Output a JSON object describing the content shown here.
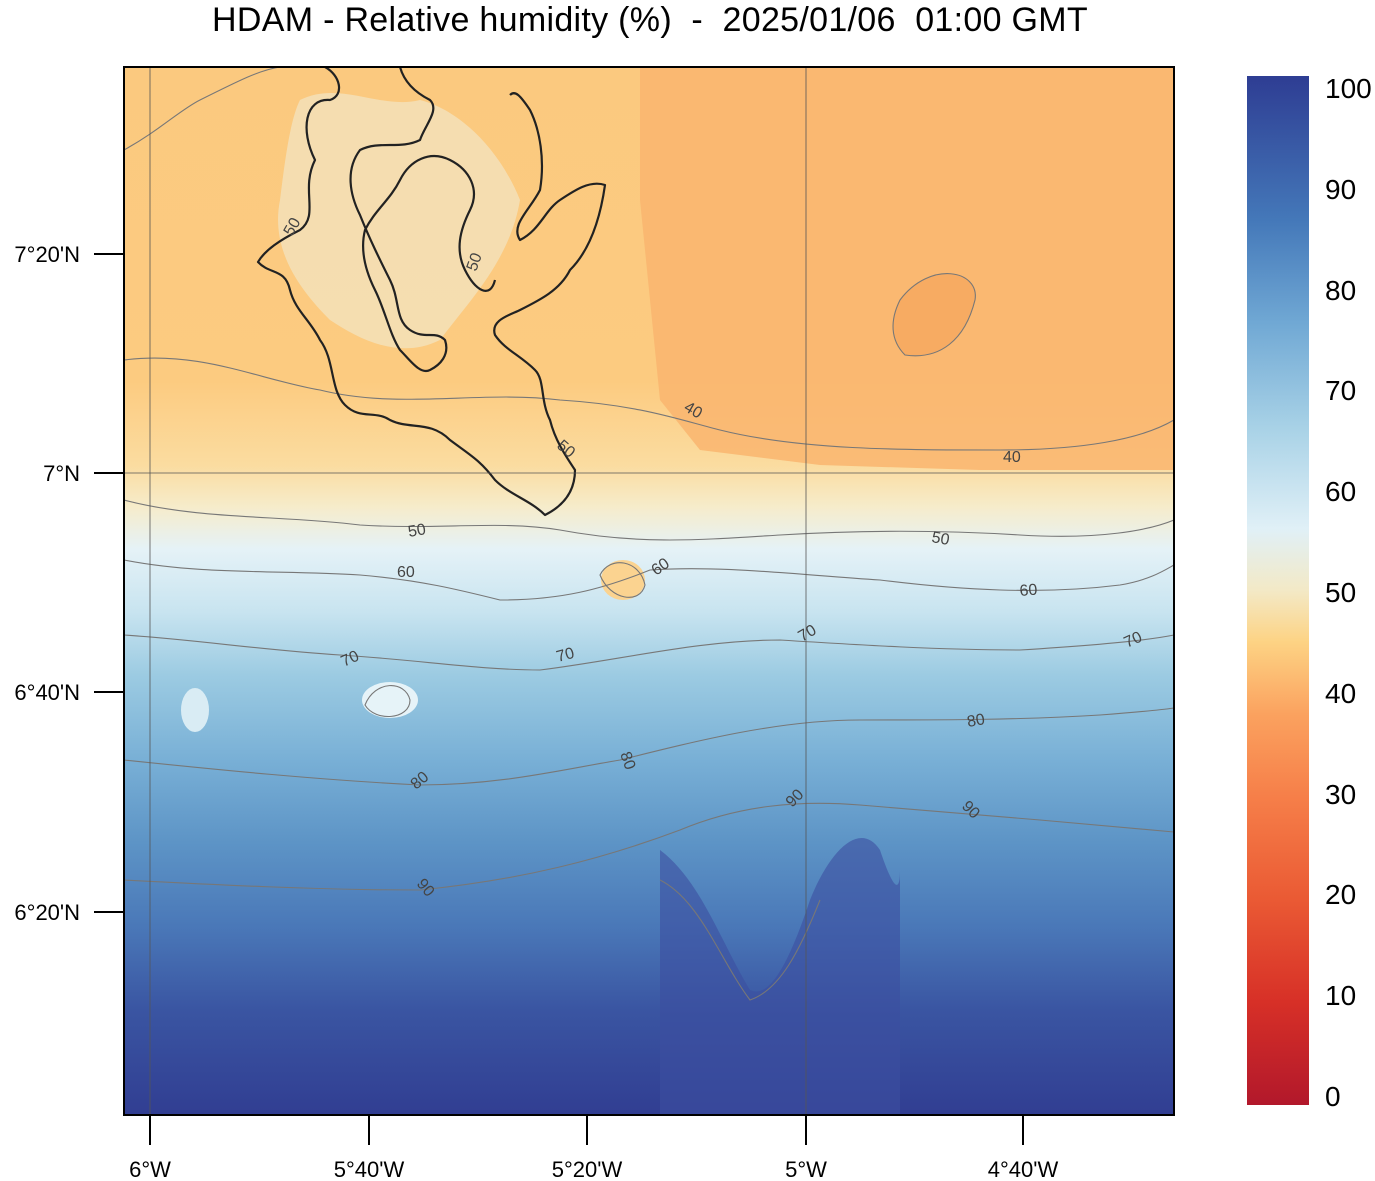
{
  "title": "HDAM - Relative humidity (%)  -  2025/01/06  01:00 GMT",
  "map": {
    "lat_ticks": [
      "7°20'N",
      "7°N",
      "6°40'N",
      "6°20'N"
    ],
    "lon_ticks": [
      "6°W",
      "5°40'W",
      "5°20'W",
      "5°W",
      "4°40'W"
    ],
    "contour_labels": [
      "40",
      "40",
      "50",
      "50",
      "50",
      "50",
      "50",
      "60",
      "60",
      "60",
      "70",
      "70",
      "70",
      "70",
      "80",
      "80",
      "80",
      "90",
      "90",
      "90"
    ]
  },
  "colorbar": {
    "labels": [
      "100",
      "90",
      "80",
      "70",
      "60",
      "50",
      "40",
      "30",
      "20",
      "10",
      "0"
    ],
    "colors": [
      "#b2182b",
      "#d73027",
      "#f46d43",
      "#fba25f",
      "#fdcc7a",
      "#f3e9c6",
      "#e0f0f7",
      "#a7d1e6",
      "#70a8d4",
      "#4478b9",
      "#2e3d93"
    ]
  },
  "colors": {
    "coast": "#222222",
    "grid": "#555555",
    "contour": "#777777"
  }
}
